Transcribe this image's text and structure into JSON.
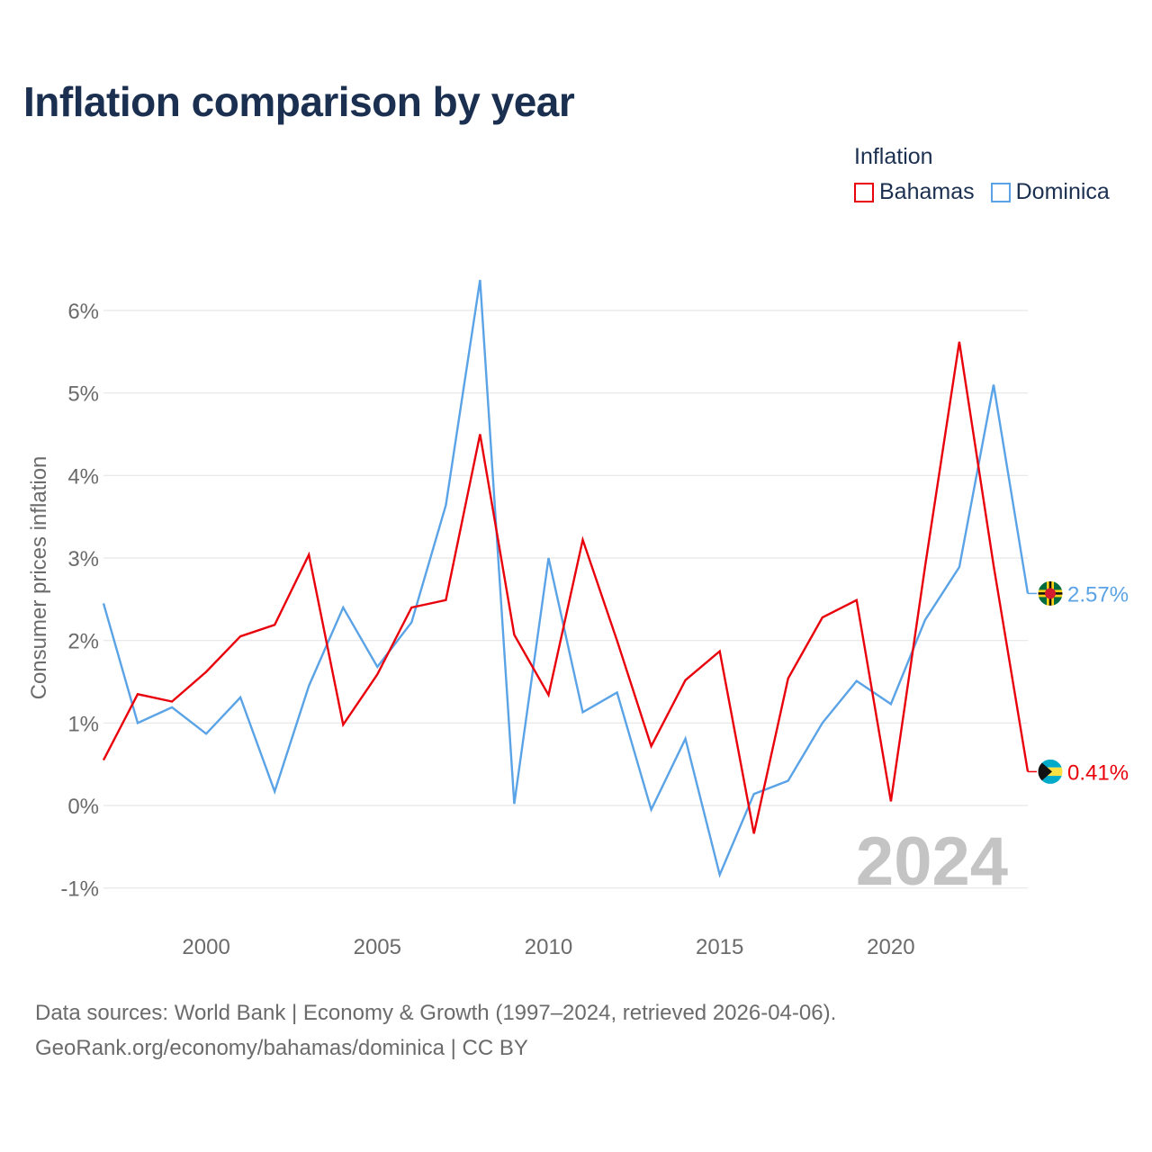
{
  "title": "Inflation comparison by year",
  "legend": {
    "title": "Inflation",
    "items": [
      {
        "name": "Bahamas",
        "color": "#e8000b"
      },
      {
        "name": "Dominica",
        "color": "#5aa3e6"
      }
    ]
  },
  "footer": {
    "line1": "Data sources: World Bank | Economy & Growth (1997–2024, retrieved 2026-04-06).",
    "line2": "GeoRank.org/economy/bahamas/dominica | CC BY"
  },
  "chart_data": {
    "type": "line",
    "title": "Inflation comparison by year",
    "xlabel": "",
    "ylabel": "Consumer prices inflation",
    "xlim": [
      1997,
      2024
    ],
    "ylim": [
      -1,
      6
    ],
    "x_ticks": [
      2000,
      2005,
      2010,
      2015,
      2020
    ],
    "x_tick_labels": [
      "2000",
      "2005",
      "2010",
      "2015",
      "2020"
    ],
    "y_ticks": [
      -1,
      0,
      1,
      2,
      3,
      4,
      5,
      6
    ],
    "y_tick_labels": [
      "-1%",
      "0%",
      "1%",
      "2%",
      "3%",
      "4%",
      "5%",
      "6%"
    ],
    "grid": true,
    "year_watermark": "2024",
    "x": [
      1997,
      1998,
      1999,
      2000,
      2001,
      2002,
      2003,
      2004,
      2005,
      2006,
      2007,
      2008,
      2009,
      2010,
      2011,
      2012,
      2013,
      2014,
      2015,
      2016,
      2017,
      2018,
      2019,
      2020,
      2021,
      2022,
      2023,
      2024
    ],
    "series": [
      {
        "name": "Bahamas",
        "color": "#e8000b",
        "end_label": "0.41%",
        "flag": "bahamas-flag-icon",
        "values": [
          0.55,
          1.35,
          1.26,
          1.62,
          2.05,
          2.19,
          3.04,
          0.98,
          1.59,
          2.4,
          2.49,
          4.5,
          2.07,
          1.34,
          3.22,
          2.0,
          0.72,
          1.52,
          1.87,
          -0.34,
          1.54,
          2.28,
          2.49,
          0.05,
          2.9,
          5.62,
          2.91,
          0.41
        ]
      },
      {
        "name": "Dominica",
        "color": "#5aa3e6",
        "end_label": "2.57%",
        "flag": "dominica-flag-icon",
        "values": [
          2.45,
          1.0,
          1.19,
          0.87,
          1.31,
          0.17,
          1.45,
          2.4,
          1.68,
          2.22,
          3.64,
          6.37,
          0.02,
          3.0,
          1.13,
          1.37,
          -0.05,
          0.81,
          -0.84,
          0.14,
          0.3,
          1.0,
          1.51,
          1.23,
          2.25,
          2.89,
          5.1,
          2.57
        ]
      }
    ]
  }
}
